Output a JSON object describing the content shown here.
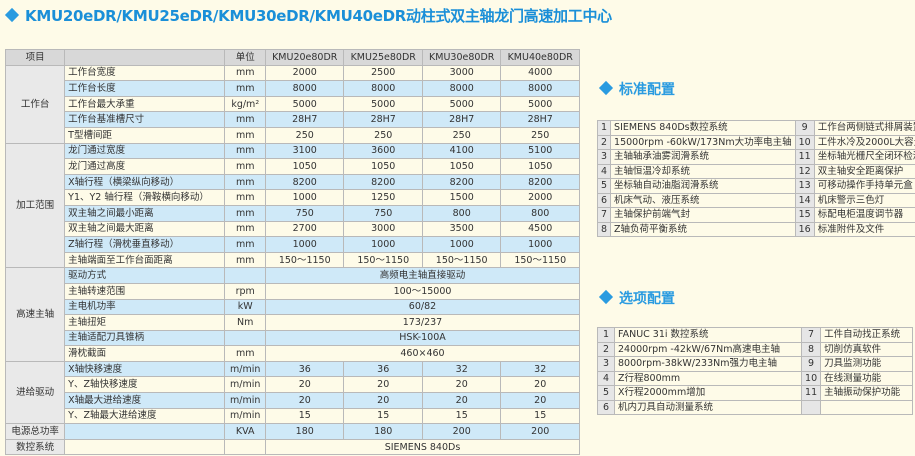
{
  "title": "KMU20eDR/KMU25eDR/KMU30eDR/KMU40eDR动柱式双主轴龙门高速加工中心",
  "spec_table": {
    "headers": [
      "项目",
      "",
      "单位",
      "KMU20e80DR",
      "KMU25e80DR",
      "KMU30e80DR",
      "KMU40e80DR"
    ],
    "groups": [
      {
        "name": "工作台",
        "rows": [
          {
            "item": "工作台宽度",
            "unit": "mm",
            "values": [
              "2000",
              "2500",
              "3000",
              "4000"
            ]
          },
          {
            "item": "工作台长度",
            "unit": "mm",
            "values": [
              "8000",
              "8000",
              "8000",
              "8000"
            ]
          },
          {
            "item": "工作台最大承重",
            "unit": "kg/m²",
            "values": [
              "5000",
              "5000",
              "5000",
              "5000"
            ]
          },
          {
            "item": "工作台基准槽尺寸",
            "unit": "mm",
            "values": [
              "28H7",
              "28H7",
              "28H7",
              "28H7"
            ]
          },
          {
            "item": "T型槽间距",
            "unit": "mm",
            "values": [
              "250",
              "250",
              "250",
              "250"
            ]
          }
        ]
      },
      {
        "name": "加工范围",
        "rows": [
          {
            "item": "龙门通过宽度",
            "unit": "mm",
            "values": [
              "3100",
              "3600",
              "4100",
              "5100"
            ]
          },
          {
            "item": "龙门通过高度",
            "unit": "mm",
            "values": [
              "1050",
              "1050",
              "1050",
              "1050"
            ]
          },
          {
            "item": "X轴行程（横梁纵向移动）",
            "unit": "mm",
            "values": [
              "8200",
              "8200",
              "8200",
              "8200"
            ]
          },
          {
            "item": "Y1、Y2 轴行程（滑鞍横向移动）",
            "unit": "mm",
            "values": [
              "1000",
              "1250",
              "1500",
              "2000"
            ]
          },
          {
            "item": "双主轴之间最小距离",
            "unit": "mm",
            "values": [
              "750",
              "750",
              "800",
              "800"
            ]
          },
          {
            "item": "双主轴之间最大距离",
            "unit": "mm",
            "values": [
              "2700",
              "3000",
              "3500",
              "4500"
            ]
          },
          {
            "item": "Z轴行程（滑枕垂直移动）",
            "unit": "mm",
            "values": [
              "1000",
              "1000",
              "1000",
              "1000"
            ]
          },
          {
            "item": "主轴端面至工作台面距离",
            "unit": "mm",
            "values": [
              "150～1150",
              "150～1150",
              "150～1150",
              "150～1150"
            ]
          }
        ]
      },
      {
        "name": "高速主轴",
        "rows": [
          {
            "item": "驱动方式",
            "unit": "",
            "value": "高频电主轴直接驱动"
          },
          {
            "item": "主轴转速范围",
            "unit": "rpm",
            "value": "100～15000"
          },
          {
            "item": "主电机功率",
            "unit": "kW",
            "value": "60/82"
          },
          {
            "item": "主轴扭矩",
            "unit": "Nm",
            "value": "173/237"
          },
          {
            "item": "主轴适配刀具锥柄",
            "unit": "",
            "value": "HSK-100A"
          },
          {
            "item": "滑枕截面",
            "unit": "mm",
            "value": "460×460"
          }
        ]
      },
      {
        "name": "进给驱动",
        "rows": [
          {
            "item": "X轴快移速度",
            "unit": "m/min",
            "values": [
              "36",
              "36",
              "32",
              "32"
            ]
          },
          {
            "item": "Y、Z轴快移速度",
            "unit": "m/min",
            "values": [
              "20",
              "20",
              "20",
              "20"
            ]
          },
          {
            "item": "X轴最大进给速度",
            "unit": "m/min",
            "values": [
              "20",
              "20",
              "20",
              "20"
            ]
          },
          {
            "item": "Y、Z轴最大进给速度",
            "unit": "m/min",
            "values": [
              "15",
              "15",
              "15",
              "15"
            ]
          }
        ]
      },
      {
        "name": "电源总功率",
        "rows": [
          {
            "item": "",
            "unit": "KVA",
            "values": [
              "180",
              "180",
              "200",
              "200"
            ]
          }
        ]
      },
      {
        "name": "数控系统",
        "rows": [
          {
            "item": "",
            "unit": "",
            "value": "SIEMENS 840Ds"
          }
        ]
      }
    ]
  },
  "standard_config": {
    "heading": "标准配置",
    "left": [
      {
        "n": "1",
        "text": "SIEMENS 840Ds数控系统"
      },
      {
        "n": "2",
        "text": "15000rpm -60kW/173Nm大功率电主轴"
      },
      {
        "n": "3",
        "text": "主轴轴承油雾润滑系统"
      },
      {
        "n": "4",
        "text": "主轴恒温冷却系统"
      },
      {
        "n": "5",
        "text": "坐标轴自动油脂润滑系统"
      },
      {
        "n": "6",
        "text": "机床气动、液压系统"
      },
      {
        "n": "7",
        "text": "主轴保护前端气封"
      },
      {
        "n": "8",
        "text": "Z轴负荷平衡系统"
      }
    ],
    "right": [
      {
        "n": "9",
        "text": "工作台两侧链式排屑装置"
      },
      {
        "n": "10",
        "text": "工件水冷及2000L大容量水箱"
      },
      {
        "n": "11",
        "text": "坐标轴光栅尺全闭环检测"
      },
      {
        "n": "12",
        "text": "双主轴安全距离保护"
      },
      {
        "n": "13",
        "text": "可移动操作手持单元盒"
      },
      {
        "n": "14",
        "text": "机床警示三色灯"
      },
      {
        "n": "15",
        "text": "标配电柜温度调节器"
      },
      {
        "n": "16",
        "text": "标准附件及文件"
      }
    ]
  },
  "optional_config": {
    "heading": "选项配置",
    "left": [
      {
        "n": "1",
        "text": "FANUC 31i 数控系统"
      },
      {
        "n": "2",
        "text": "24000rpm -42kW/67Nm高速电主轴"
      },
      {
        "n": "3",
        "text": "8000rpm-38kW/233Nm强力电主轴"
      },
      {
        "n": "4",
        "text": "Z行程800mm"
      },
      {
        "n": "5",
        "text": "X行程2000mm增加"
      },
      {
        "n": "6",
        "text": "机内刀具自动测量系统"
      }
    ],
    "right": [
      {
        "n": "7",
        "text": "工件自动找正系统"
      },
      {
        "n": "8",
        "text": "切削仿真软件"
      },
      {
        "n": "9",
        "text": "刀具监测功能"
      },
      {
        "n": "10",
        "text": "在线测量功能"
      },
      {
        "n": "11",
        "text": "主轴振动保护功能"
      },
      {
        "n": "",
        "text": ""
      }
    ]
  }
}
